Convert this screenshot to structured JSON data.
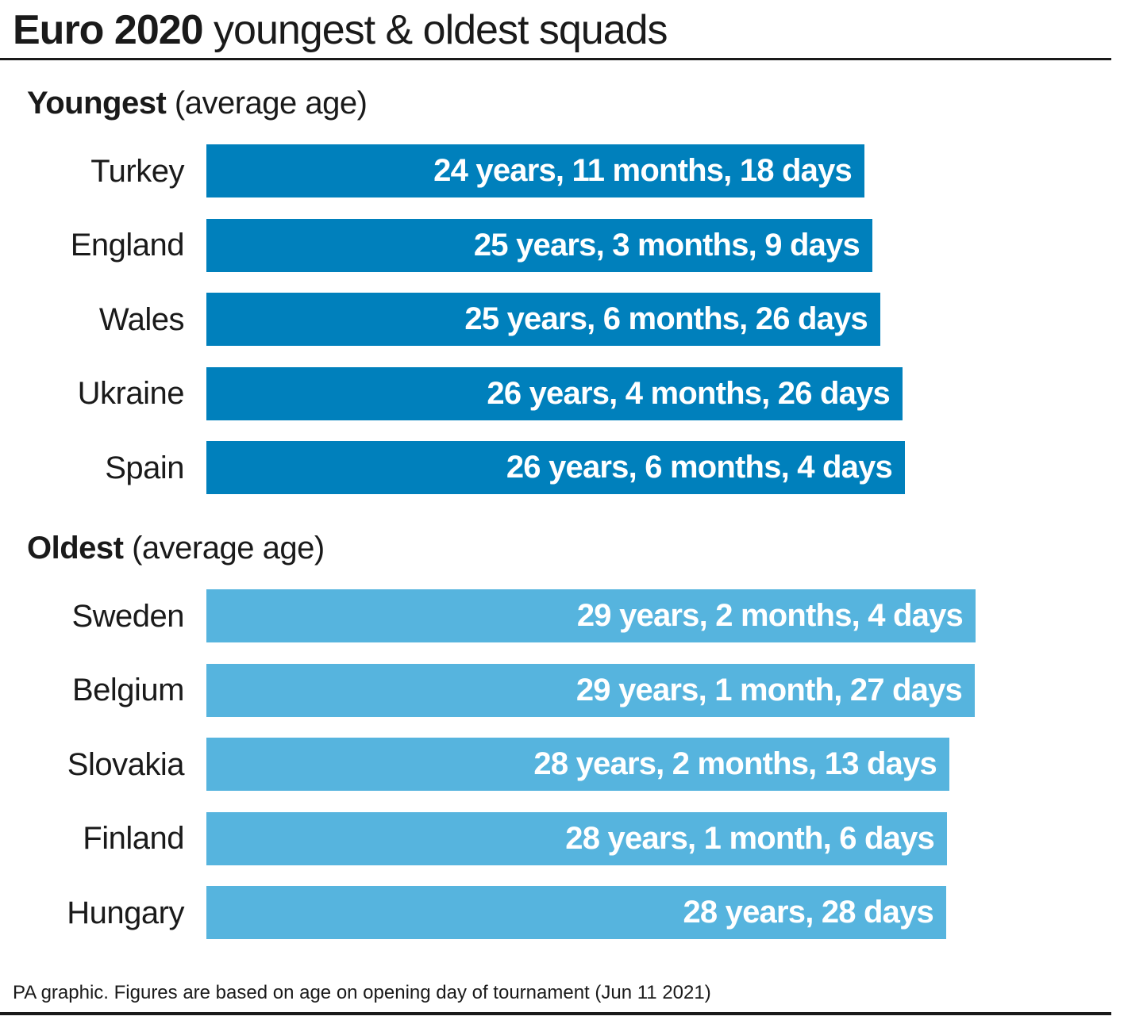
{
  "title": {
    "bold": "Euro 2020",
    "rest": "youngest & oldest squads"
  },
  "footer": "PA graphic. Figures are based on age on opening day of tournament (Jun 11 2021)",
  "colors": {
    "youngest": "#0080bc",
    "oldest": "#56b4de",
    "text": "#1a1a1a"
  },
  "chart_data": [
    {
      "type": "bar",
      "orientation": "horizontal",
      "title_bold": "Youngest",
      "title_rest": "(average age)",
      "categories": [
        "Turkey",
        "England",
        "Wales",
        "Ukraine",
        "Spain"
      ],
      "labels": [
        "24 years, 11 months, 18 days",
        "25 years, 3 months, 9 days",
        "25 years, 6 months, 26 days",
        "26 years, 4 months, 26 days",
        "26 years, 6 months, 4 days"
      ],
      "values": [
        24.96,
        25.27,
        25.57,
        26.41,
        26.51
      ]
    },
    {
      "type": "bar",
      "orientation": "horizontal",
      "title_bold": "Oldest",
      "title_rest": "(average age)",
      "categories": [
        "Sweden",
        "Belgium",
        "Slovakia",
        "Finland",
        "Hungary"
      ],
      "labels": [
        "29 years, 2 months, 4 days",
        "29 years, 1 month, 27 days",
        "28 years, 2 months, 13 days",
        "28 years, 1 month, 6 days",
        "28 years, 28 days"
      ],
      "values": [
        29.18,
        29.16,
        28.2,
        28.1,
        28.08
      ]
    }
  ]
}
